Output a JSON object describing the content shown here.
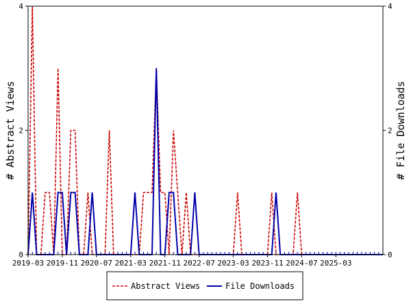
{
  "chart_data": {
    "type": "line",
    "y_left_label": "# Abstract Views",
    "y_right_label": "# File Downloads",
    "ylim": [
      0,
      4
    ],
    "y_ticks": [
      0,
      2,
      4
    ],
    "x_range": [
      "2019-03",
      "2026-02"
    ],
    "x_tick_labels": [
      "2019-03",
      "2019-11",
      "2020-07",
      "2021-03",
      "2021-11",
      "2022-07",
      "2023-03",
      "2023-11",
      "2024-07",
      "2025-03"
    ],
    "legend_position": "bottom",
    "series": [
      {
        "name": "Abstract Views",
        "color": "#cc0000",
        "style": "dashed",
        "axis": "left",
        "points": [
          [
            "2019-03",
            0
          ],
          [
            "2019-04",
            4
          ],
          [
            "2019-05",
            0
          ],
          [
            "2019-06",
            0
          ],
          [
            "2019-07",
            1
          ],
          [
            "2019-08",
            1
          ],
          [
            "2019-09",
            0
          ],
          [
            "2019-10",
            3
          ],
          [
            "2019-11",
            0
          ],
          [
            "2019-12",
            0
          ],
          [
            "2020-01",
            2
          ],
          [
            "2020-02",
            2
          ],
          [
            "2020-03",
            0
          ],
          [
            "2020-04",
            0
          ],
          [
            "2020-05",
            1
          ],
          [
            "2020-06",
            0
          ],
          [
            "2020-07",
            0
          ],
          [
            "2020-08",
            0
          ],
          [
            "2020-09",
            0
          ],
          [
            "2020-10",
            2
          ],
          [
            "2020-11",
            0
          ],
          [
            "2020-12",
            0
          ],
          [
            "2021-01",
            0
          ],
          [
            "2021-02",
            0
          ],
          [
            "2021-03",
            0
          ],
          [
            "2021-04",
            0
          ],
          [
            "2021-05",
            0
          ],
          [
            "2021-06",
            1
          ],
          [
            "2021-07",
            1
          ],
          [
            "2021-08",
            1
          ],
          [
            "2021-09",
            3
          ],
          [
            "2021-10",
            1
          ],
          [
            "2021-11",
            1
          ],
          [
            "2021-12",
            0
          ],
          [
            "2022-01",
            2
          ],
          [
            "2022-02",
            1
          ],
          [
            "2022-03",
            0
          ],
          [
            "2022-04",
            1
          ],
          [
            "2022-05",
            0
          ],
          [
            "2023-03",
            0
          ],
          [
            "2023-04",
            1
          ],
          [
            "2023-05",
            0
          ],
          [
            "2023-11",
            0
          ],
          [
            "2023-12",
            1
          ],
          [
            "2024-01",
            0
          ],
          [
            "2024-05",
            0
          ],
          [
            "2024-06",
            1
          ],
          [
            "2024-07",
            0
          ],
          [
            "2026-02",
            0
          ]
        ]
      },
      {
        "name": "File Downloads",
        "color": "#0000aa",
        "style": "solid",
        "axis": "right",
        "points": [
          [
            "2019-03",
            0
          ],
          [
            "2019-04",
            1
          ],
          [
            "2019-05",
            0
          ],
          [
            "2019-09",
            0
          ],
          [
            "2019-10",
            1
          ],
          [
            "2019-11",
            1
          ],
          [
            "2019-12",
            0
          ],
          [
            "2020-01",
            1
          ],
          [
            "2020-02",
            1
          ],
          [
            "2020-03",
            0
          ],
          [
            "2020-05",
            0
          ],
          [
            "2020-06",
            1
          ],
          [
            "2020-07",
            0
          ],
          [
            "2021-03",
            0
          ],
          [
            "2021-04",
            1
          ],
          [
            "2021-05",
            0
          ],
          [
            "2021-08",
            0
          ],
          [
            "2021-09",
            3
          ],
          [
            "2021-10",
            0
          ],
          [
            "2021-11",
            0
          ],
          [
            "2021-12",
            1
          ],
          [
            "2022-01",
            1
          ],
          [
            "2022-02",
            0
          ],
          [
            "2022-05",
            0
          ],
          [
            "2022-06",
            1
          ],
          [
            "2022-07",
            0
          ],
          [
            "2023-12",
            0
          ],
          [
            "2024-01",
            1
          ],
          [
            "2024-02",
            0
          ],
          [
            "2026-02",
            0
          ]
        ]
      }
    ]
  }
}
